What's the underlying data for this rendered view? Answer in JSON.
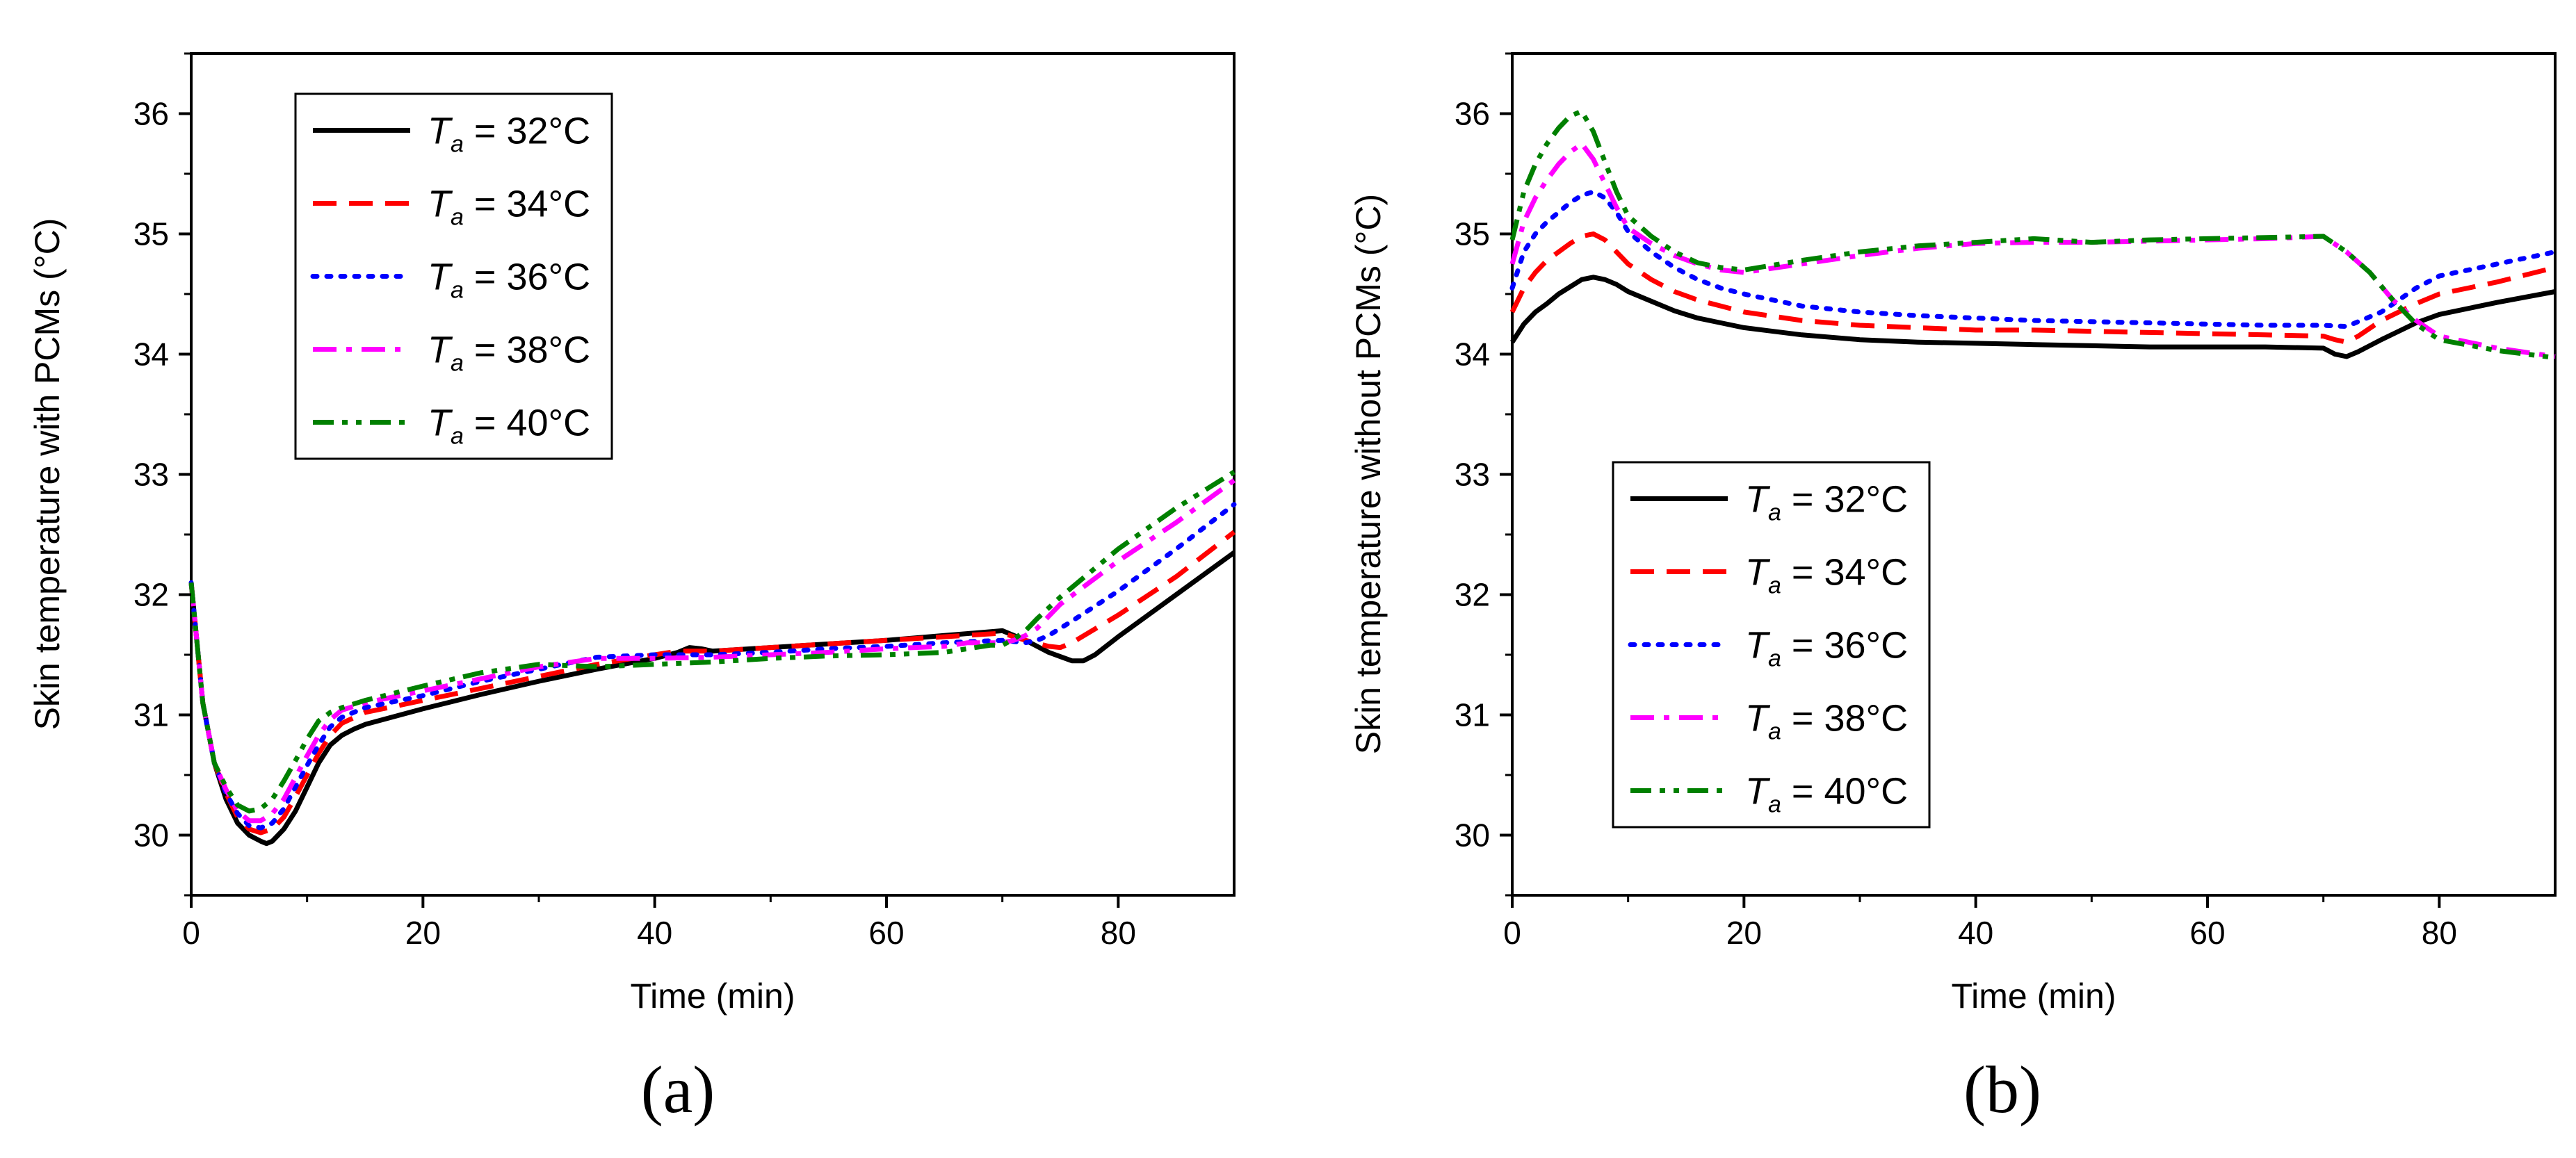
{
  "chart_data": [
    {
      "type": "line",
      "panel": "a",
      "caption": "(a)",
      "xlabel": "Time (min)",
      "ylabel": "Skin temperature with PCMs (°C)",
      "xlim": [
        0,
        90
      ],
      "ylim": [
        29.5,
        36.5
      ],
      "xticks": [
        0,
        20,
        40,
        60,
        80
      ],
      "yticks": [
        30,
        31,
        32,
        33,
        34,
        35,
        36
      ],
      "legend_position": "top-left",
      "series": [
        {
          "name": "32",
          "label_main": "T",
          "label_sub": "a",
          "label_rest": " = 32°C",
          "color": "#000000",
          "style": "solid",
          "x": [
            0,
            1,
            2,
            3,
            4,
            5,
            6,
            6.5,
            7,
            8,
            9,
            10,
            11,
            12,
            13,
            14,
            15,
            20,
            25,
            30,
            35,
            40,
            42,
            43,
            44,
            45,
            50,
            55,
            60,
            65,
            70,
            72,
            74,
            76,
            77,
            78,
            80,
            85,
            90
          ],
          "y": [
            32.1,
            31.1,
            30.6,
            30.3,
            30.1,
            30.0,
            29.95,
            29.93,
            29.95,
            30.05,
            30.2,
            30.4,
            30.6,
            30.75,
            30.83,
            30.88,
            30.92,
            31.05,
            31.17,
            31.28,
            31.38,
            31.47,
            31.52,
            31.56,
            31.55,
            31.53,
            31.56,
            31.59,
            31.62,
            31.66,
            31.7,
            31.62,
            31.52,
            31.45,
            31.45,
            31.5,
            31.65,
            32.0,
            32.35
          ]
        },
        {
          "name": "34",
          "label_main": "T",
          "label_sub": "a",
          "label_rest": " = 34°C",
          "color": "#ff0000",
          "style": "dash",
          "x": [
            0,
            1,
            2,
            3,
            4,
            5,
            6,
            7,
            8,
            9,
            10,
            11,
            12,
            13,
            15,
            20,
            25,
            30,
            35,
            40,
            42,
            45,
            50,
            55,
            60,
            65,
            70,
            72,
            74,
            75,
            76,
            80,
            85,
            90
          ],
          "y": [
            32.1,
            31.1,
            30.6,
            30.35,
            30.15,
            30.05,
            30.02,
            30.05,
            30.15,
            30.32,
            30.5,
            30.68,
            30.83,
            30.93,
            31.02,
            31.12,
            31.22,
            31.32,
            31.42,
            31.5,
            31.53,
            31.53,
            31.56,
            31.59,
            31.62,
            31.65,
            31.68,
            31.62,
            31.57,
            31.56,
            31.6,
            31.83,
            32.15,
            32.52
          ]
        },
        {
          "name": "36",
          "label_main": "T",
          "label_sub": "a",
          "label_rest": " = 36°C",
          "color": "#0000ff",
          "style": "dot",
          "x": [
            0,
            1,
            2,
            3,
            4,
            5,
            6,
            7,
            8,
            9,
            10,
            11,
            12,
            13,
            15,
            20,
            25,
            30,
            35,
            40,
            45,
            50,
            55,
            60,
            65,
            70,
            72,
            73,
            74,
            76,
            80,
            85,
            90
          ],
          "y": [
            32.1,
            31.1,
            30.6,
            30.35,
            30.18,
            30.08,
            30.06,
            30.1,
            30.22,
            30.4,
            30.58,
            30.75,
            30.9,
            30.98,
            31.06,
            31.16,
            31.28,
            31.38,
            31.48,
            31.5,
            31.5,
            31.52,
            31.55,
            31.57,
            31.6,
            31.62,
            31.6,
            31.62,
            31.66,
            31.78,
            32.03,
            32.38,
            32.75
          ]
        },
        {
          "name": "38",
          "label_main": "T",
          "label_sub": "a",
          "label_rest": " = 38°C",
          "color": "#ff00ff",
          "style": "dashdot",
          "x": [
            0,
            1,
            2,
            3,
            4,
            5,
            6,
            7,
            8,
            9,
            10,
            11,
            12,
            13,
            15,
            20,
            25,
            30,
            35,
            40,
            45,
            50,
            55,
            60,
            65,
            67,
            70,
            71,
            72,
            73,
            75,
            80,
            85,
            90
          ],
          "y": [
            32.1,
            31.1,
            30.6,
            30.38,
            30.2,
            30.12,
            30.12,
            30.18,
            30.3,
            30.48,
            30.66,
            30.83,
            30.96,
            31.04,
            31.1,
            31.2,
            31.3,
            31.4,
            31.47,
            31.47,
            31.48,
            31.5,
            31.52,
            31.55,
            31.57,
            31.6,
            31.6,
            31.62,
            31.66,
            31.72,
            31.92,
            32.28,
            32.6,
            32.95
          ]
        },
        {
          "name": "40",
          "label_main": "T",
          "label_sub": "a",
          "label_rest": " = 40°C",
          "color": "#008000",
          "style": "dashdotdot",
          "x": [
            0,
            1,
            2,
            3,
            4,
            5,
            6,
            7,
            8,
            9,
            10,
            11,
            12,
            13,
            15,
            20,
            25,
            30,
            35,
            40,
            45,
            50,
            55,
            60,
            65,
            67,
            69,
            70,
            71,
            72,
            73,
            75,
            80,
            85,
            90
          ],
          "y": [
            32.1,
            31.1,
            30.6,
            30.4,
            30.25,
            30.2,
            30.22,
            30.3,
            30.45,
            30.62,
            30.8,
            30.95,
            31.02,
            31.06,
            31.12,
            31.24,
            31.35,
            31.42,
            31.4,
            31.42,
            31.44,
            31.47,
            31.49,
            31.5,
            31.52,
            31.55,
            31.58,
            31.58,
            31.63,
            31.7,
            31.8,
            31.98,
            32.38,
            32.72,
            33.02
          ]
        }
      ]
    },
    {
      "type": "line",
      "panel": "b",
      "caption": "(b)",
      "xlabel": "Time (min)",
      "ylabel": "Skin temperature without PCMs (°C)",
      "xlim": [
        0,
        90
      ],
      "ylim": [
        29.5,
        36.5
      ],
      "xticks": [
        0,
        20,
        40,
        60,
        80
      ],
      "yticks": [
        30,
        31,
        32,
        33,
        34,
        35,
        36
      ],
      "legend_position": "bottom-left",
      "series": [
        {
          "name": "32",
          "label_main": "T",
          "label_sub": "a",
          "label_rest": " = 32°C",
          "color": "#000000",
          "style": "solid",
          "x": [
            0,
            1,
            2,
            3,
            4,
            5,
            6,
            7,
            8,
            9,
            10,
            12,
            14,
            16,
            18,
            20,
            25,
            30,
            35,
            40,
            45,
            50,
            55,
            60,
            65,
            70,
            71,
            72,
            73,
            75,
            78,
            80,
            85,
            90
          ],
          "y": [
            34.1,
            34.25,
            34.35,
            34.42,
            34.5,
            34.56,
            34.62,
            34.64,
            34.62,
            34.58,
            34.52,
            34.44,
            34.36,
            34.3,
            34.26,
            34.22,
            34.16,
            34.12,
            34.1,
            34.09,
            34.08,
            34.07,
            34.06,
            34.06,
            34.06,
            34.05,
            34.0,
            33.98,
            34.02,
            34.12,
            34.26,
            34.33,
            34.43,
            34.52
          ]
        },
        {
          "name": "34",
          "label_main": "T",
          "label_sub": "a",
          "label_rest": " = 34°C",
          "color": "#ff0000",
          "style": "dash",
          "x": [
            0,
            1,
            2,
            3,
            4,
            5,
            6,
            7,
            8,
            9,
            10,
            12,
            14,
            16,
            18,
            20,
            25,
            30,
            35,
            40,
            45,
            50,
            55,
            60,
            65,
            70,
            71,
            72,
            73,
            75,
            78,
            80,
            85,
            90
          ],
          "y": [
            34.35,
            34.55,
            34.68,
            34.78,
            34.85,
            34.92,
            34.98,
            35.0,
            34.95,
            34.85,
            34.75,
            34.62,
            34.52,
            34.45,
            34.4,
            34.35,
            34.28,
            34.24,
            34.22,
            34.2,
            34.2,
            34.19,
            34.18,
            34.17,
            34.16,
            34.15,
            34.12,
            34.1,
            34.15,
            34.28,
            34.42,
            34.5,
            34.6,
            34.72
          ]
        },
        {
          "name": "36",
          "label_main": "T",
          "label_sub": "a",
          "label_rest": " = 36°C",
          "color": "#0000ff",
          "style": "dot",
          "x": [
            0,
            1,
            2,
            3,
            4,
            5,
            6,
            7,
            8,
            9,
            10,
            12,
            14,
            16,
            18,
            20,
            25,
            30,
            35,
            40,
            45,
            50,
            55,
            60,
            65,
            70,
            72,
            75,
            78,
            80,
            85,
            90
          ],
          "y": [
            34.55,
            34.85,
            35.0,
            35.1,
            35.18,
            35.26,
            35.32,
            35.35,
            35.3,
            35.18,
            35.02,
            34.85,
            34.72,
            34.62,
            34.55,
            34.5,
            34.4,
            34.35,
            34.32,
            34.3,
            34.28,
            34.27,
            34.26,
            34.25,
            34.24,
            34.24,
            34.23,
            34.35,
            34.55,
            34.65,
            34.75,
            34.85
          ]
        },
        {
          "name": "38",
          "label_main": "T",
          "label_sub": "a",
          "label_rest": " = 38°C",
          "color": "#ff00ff",
          "style": "dashdot",
          "x": [
            0,
            1,
            2,
            3,
            4,
            5,
            6,
            7,
            8,
            9,
            10,
            12,
            14,
            16,
            18,
            20,
            25,
            30,
            35,
            40,
            45,
            50,
            55,
            60,
            65,
            70,
            72,
            74,
            76,
            78,
            80,
            85,
            90
          ],
          "y": [
            34.75,
            35.1,
            35.3,
            35.45,
            35.58,
            35.68,
            35.75,
            35.62,
            35.42,
            35.22,
            35.05,
            34.92,
            34.82,
            34.75,
            34.7,
            34.68,
            34.75,
            34.82,
            34.88,
            34.92,
            34.93,
            34.93,
            34.94,
            34.95,
            34.96,
            34.98,
            34.85,
            34.68,
            34.45,
            34.28,
            34.15,
            34.05,
            33.98
          ]
        },
        {
          "name": "40",
          "label_main": "T",
          "label_sub": "a",
          "label_rest": " = 40°C",
          "color": "#008000",
          "style": "dashdotdot",
          "x": [
            0,
            1,
            2,
            3,
            4,
            5,
            6,
            7,
            8,
            9,
            10,
            12,
            14,
            16,
            18,
            20,
            25,
            30,
            35,
            40,
            45,
            50,
            55,
            60,
            65,
            70,
            72,
            74,
            76,
            78,
            80,
            85,
            90
          ],
          "y": [
            34.95,
            35.35,
            35.58,
            35.75,
            35.88,
            35.98,
            36.02,
            35.85,
            35.6,
            35.35,
            35.15,
            34.98,
            34.85,
            34.76,
            34.72,
            34.7,
            34.78,
            34.85,
            34.9,
            34.93,
            34.96,
            34.93,
            34.95,
            34.96,
            34.97,
            34.98,
            34.85,
            34.68,
            34.45,
            34.25,
            34.12,
            34.03,
            33.97
          ]
        }
      ]
    }
  ]
}
